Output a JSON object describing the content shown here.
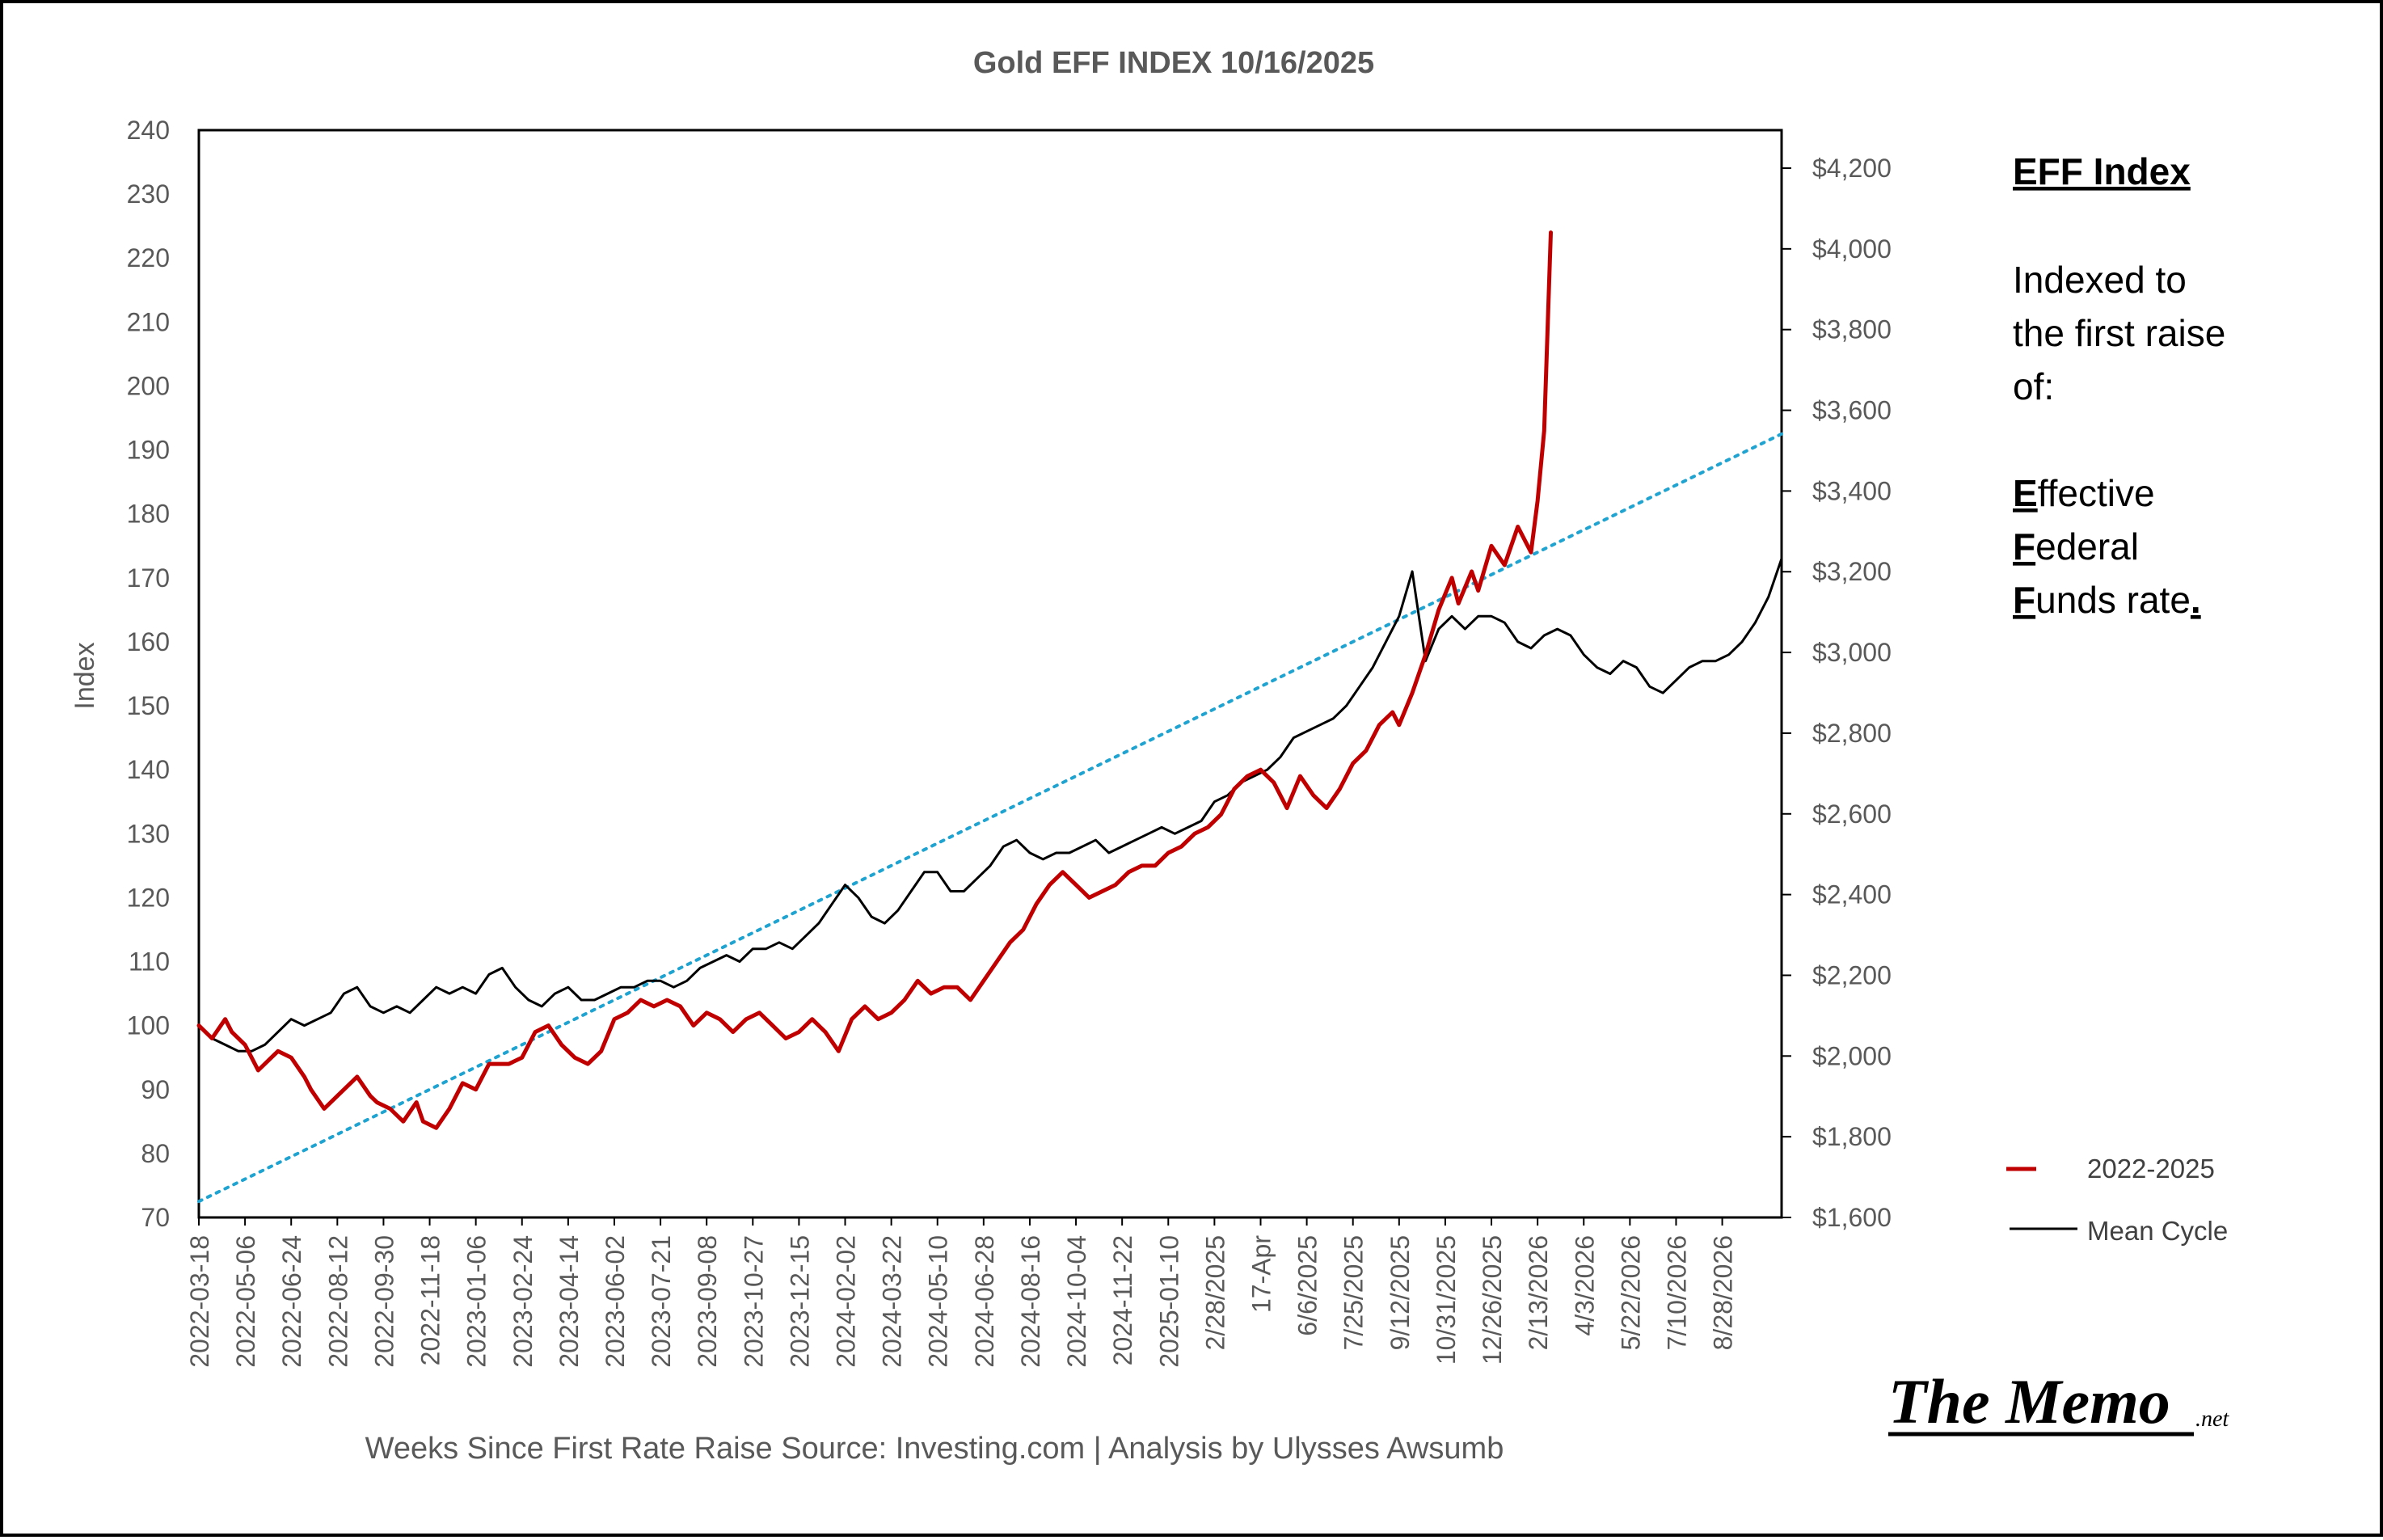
{
  "colors": {
    "series_2022_2025": "#C00000",
    "series_mean": "#000000",
    "trendline": "#1FA3D1",
    "text": "#595959"
  },
  "chart_data": {
    "type": "line",
    "title": "Gold EFF  INDEX 10/16/2025",
    "ylabel": "Index",
    "xlabel": "Weeks Since First Rate Raise   Source: Investing.com | Analysis by Ulysses Awsumb",
    "ylim": [
      70,
      240
    ],
    "yticks": [
      70,
      80,
      90,
      100,
      110,
      120,
      130,
      140,
      150,
      160,
      170,
      180,
      190,
      200,
      210,
      220,
      230,
      240
    ],
    "y2lim": [
      1600,
      4200
    ],
    "y2ticks": [
      "$1,600",
      "$1,800",
      "$2,000",
      "$2,200",
      "$2,400",
      "$2,600",
      "$2,800",
      "$3,000",
      "$3,200",
      "$3,400",
      "$3,600",
      "$3,800",
      "$4,000",
      "$4,200"
    ],
    "x_tick_labels": [
      "2022-03-18",
      "2022-05-06",
      "2022-06-24",
      "2022-08-12",
      "2022-09-30",
      "2022-11-18",
      "2023-01-06",
      "2023-02-24",
      "2023-04-14",
      "2023-06-02",
      "2023-07-21",
      "2023-09-08",
      "2023-10-27",
      "2023-12-15",
      "2024-02-02",
      "2024-03-22",
      "2024-05-10",
      "2024-06-28",
      "2024-08-16",
      "2024-10-04",
      "2024-11-22",
      "2025-01-10",
      "2/28/2025",
      "17-Apr",
      "6/6/2025",
      "7/25/2025",
      "9/12/2025",
      "10/31/2025",
      "12/26/2025",
      "2/13/2026",
      "4/3/2026",
      "5/22/2026",
      "7/10/2026",
      "8/28/2026"
    ],
    "x_tick_step_weeks": 7,
    "x_range_weeks": [
      0,
      240
    ],
    "grid": false,
    "legend_position": "bottom-right",
    "series": [
      {
        "name": "2022-2025",
        "x_weeks": [
          0,
          2,
          4,
          5,
          7,
          9,
          11,
          12,
          14,
          16,
          17,
          19,
          21,
          23,
          24,
          26,
          27,
          29,
          31,
          33,
          34,
          36,
          38,
          40,
          42,
          44,
          47,
          49,
          51,
          53,
          55,
          57,
          59,
          61,
          63,
          65,
          67,
          69,
          71,
          73,
          75,
          77,
          79,
          81,
          83,
          85,
          87,
          89,
          91,
          93,
          95,
          97,
          99,
          101,
          103,
          105,
          107,
          109,
          111,
          113,
          115,
          117,
          119,
          121,
          123,
          125,
          127,
          129,
          131,
          133,
          135,
          137,
          139,
          141,
          143,
          145,
          147,
          149,
          151,
          153,
          155,
          157,
          159,
          161,
          163,
          165,
          167,
          169,
          171,
          173,
          175,
          177,
          179,
          181,
          182,
          184,
          186,
          188,
          190,
          191,
          193,
          194,
          196,
          198,
          200,
          202,
          203,
          204,
          205
        ],
        "values": [
          100,
          98,
          101,
          99,
          97,
          93,
          95,
          96,
          95,
          92,
          90,
          87,
          89,
          91,
          92,
          89,
          88,
          87,
          85,
          88,
          85,
          84,
          87,
          91,
          90,
          94,
          94,
          95,
          99,
          100,
          97,
          95,
          94,
          96,
          101,
          102,
          104,
          103,
          104,
          103,
          100,
          102,
          101,
          99,
          101,
          102,
          100,
          98,
          99,
          101,
          99,
          96,
          101,
          103,
          101,
          102,
          104,
          107,
          105,
          106,
          106,
          104,
          107,
          110,
          113,
          115,
          119,
          122,
          124,
          122,
          120,
          121,
          122,
          124,
          125,
          125,
          127,
          128,
          130,
          131,
          133,
          137,
          139,
          140,
          138,
          134,
          139,
          136,
          134,
          137,
          141,
          143,
          147,
          149,
          147,
          152,
          158,
          165,
          170,
          166,
          171,
          168,
          175,
          172,
          178,
          174,
          182,
          193,
          224
        ]
      },
      {
        "name": "Mean Cycle",
        "x_weeks": [
          0,
          2,
          4,
          6,
          8,
          10,
          12,
          14,
          16,
          18,
          20,
          22,
          24,
          26,
          28,
          30,
          32,
          34,
          36,
          38,
          40,
          42,
          44,
          46,
          48,
          50,
          52,
          54,
          56,
          58,
          60,
          62,
          64,
          66,
          68,
          70,
          72,
          74,
          76,
          78,
          80,
          82,
          84,
          86,
          88,
          90,
          92,
          94,
          96,
          98,
          100,
          102,
          104,
          106,
          108,
          110,
          112,
          114,
          116,
          118,
          120,
          122,
          124,
          126,
          128,
          130,
          132,
          134,
          136,
          138,
          140,
          142,
          144,
          146,
          148,
          150,
          152,
          154,
          156,
          158,
          160,
          162,
          164,
          166,
          168,
          170,
          172,
          174,
          176,
          178,
          180,
          182,
          184,
          186,
          188,
          190,
          192,
          194,
          196,
          198,
          200,
          202,
          204,
          206,
          208,
          210,
          212,
          214,
          216,
          218,
          220,
          222,
          224,
          226,
          228,
          230,
          232,
          234,
          236,
          238,
          240
        ],
        "values": [
          100,
          98,
          97,
          96,
          96,
          97,
          99,
          101,
          100,
          101,
          102,
          105,
          106,
          103,
          102,
          103,
          102,
          104,
          106,
          105,
          106,
          105,
          108,
          109,
          106,
          104,
          103,
          105,
          106,
          104,
          104,
          105,
          106,
          106,
          107,
          107,
          106,
          107,
          109,
          110,
          111,
          110,
          112,
          112,
          113,
          112,
          114,
          116,
          119,
          122,
          120,
          117,
          116,
          118,
          121,
          124,
          124,
          121,
          121,
          123,
          125,
          128,
          129,
          127,
          126,
          127,
          127,
          128,
          129,
          127,
          128,
          129,
          130,
          131,
          130,
          131,
          132,
          135,
          136,
          138,
          139,
          140,
          142,
          145,
          146,
          147,
          148,
          150,
          153,
          156,
          160,
          164,
          171,
          157,
          162,
          164,
          162,
          164,
          164,
          163,
          160,
          159,
          161,
          162,
          161,
          158,
          156,
          155,
          157,
          156,
          153,
          152,
          154,
          156,
          157,
          157,
          158,
          160,
          163,
          167,
          173
        ]
      },
      {
        "name": "trendline",
        "x_weeks": [
          0,
          240
        ],
        "values": [
          72.5,
          192.5
        ]
      }
    ],
    "legend": [
      {
        "label": "2022-2025",
        "color": "#C00000"
      },
      {
        "label": "Mean Cycle",
        "color": "#000000"
      }
    ]
  },
  "sidebar": {
    "heading": "EFF Index",
    "line1": "Indexed to",
    "line2": "the first raise",
    "line3": "of:",
    "effective_initial": "E",
    "effective_rest": "ffective",
    "federal_initial": "F",
    "federal_rest": "ederal",
    "funds_initial": "F",
    "funds_rest": "unds rate",
    "funds_period": "."
  },
  "logo": {
    "main": "The Memo",
    "suffix": ".net"
  }
}
